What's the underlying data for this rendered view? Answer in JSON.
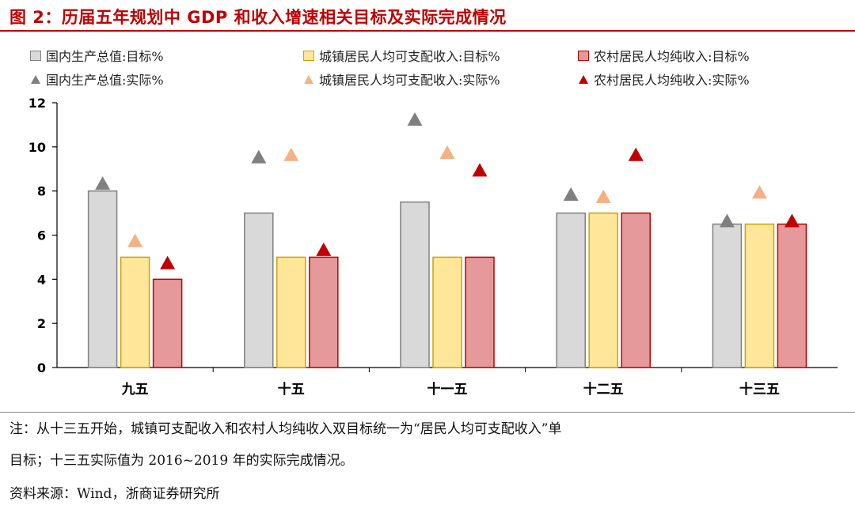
{
  "header": {
    "title": "图 2：历届五年规划中 GDP 和收入增速相关目标及实际完成情况"
  },
  "legend": {
    "items": [
      {
        "label": "国内生产总值:目标%",
        "kind": "bar",
        "fill": "#d9d9d9",
        "stroke": "#808080"
      },
      {
        "label": "城镇居民人均可支配收入:目标%",
        "kind": "bar",
        "fill": "#ffe699",
        "stroke": "#c9a400"
      },
      {
        "label": "农村居民人均纯收入:目标%",
        "kind": "bar",
        "fill": "#e6999b",
        "stroke": "#c00000"
      },
      {
        "label": "国内生产总值:实际%",
        "kind": "marker",
        "fill": "#7f7f7f"
      },
      {
        "label": "城镇居民人均可支配收入:实际%",
        "kind": "marker",
        "fill": "#f4b183"
      },
      {
        "label": "农村居民人均纯收入:实际%",
        "kind": "marker",
        "fill": "#c00000"
      }
    ]
  },
  "chart_data": {
    "type": "bar",
    "title": "历届五年规划中 GDP 和收入增速相关目标及实际完成情况",
    "xlabel": "",
    "ylabel": "",
    "ylim": [
      0,
      12
    ],
    "yticks": [
      0,
      2,
      4,
      6,
      8,
      10,
      12
    ],
    "categories": [
      "九五",
      "十五",
      "十一五",
      "十二五",
      "十三五"
    ],
    "series": [
      {
        "name": "国内生产总值:目标%",
        "kind": "bar",
        "fill": "#d9d9d9",
        "stroke": "#808080",
        "values": [
          8,
          7,
          7.5,
          7,
          6.5
        ]
      },
      {
        "name": "城镇居民人均可支配收入:目标%",
        "kind": "bar",
        "fill": "#ffe699",
        "stroke": "#c9a400",
        "values": [
          5,
          5,
          5,
          7,
          6.5
        ]
      },
      {
        "name": "农村居民人均纯收入:目标%",
        "kind": "bar",
        "fill": "#e6999b",
        "stroke": "#c00000",
        "values": [
          4,
          5,
          5,
          7,
          6.5
        ]
      },
      {
        "name": "国内生产总值:实际%",
        "kind": "marker",
        "fill": "#7f7f7f",
        "values": [
          8.3,
          9.5,
          11.2,
          7.8,
          6.6
        ]
      },
      {
        "name": "城镇居民人均可支配收入:实际%",
        "kind": "marker",
        "fill": "#f4b183",
        "values": [
          5.7,
          9.6,
          9.7,
          7.7,
          7.9
        ]
      },
      {
        "name": "农村居民人均纯收入:实际%",
        "kind": "marker",
        "fill": "#c00000",
        "values": [
          4.7,
          5.3,
          8.9,
          9.6,
          6.6
        ]
      }
    ]
  },
  "notes": {
    "line1": "注：从十三五开始，城镇可支配收入和农村人均纯收入双目标统一为“居民人均可支配收入”单",
    "line2": "目标；十三五实际值为 2016~2019 年的实际完成情况。",
    "source": "资料来源：Wind，浙商证券研究所"
  }
}
